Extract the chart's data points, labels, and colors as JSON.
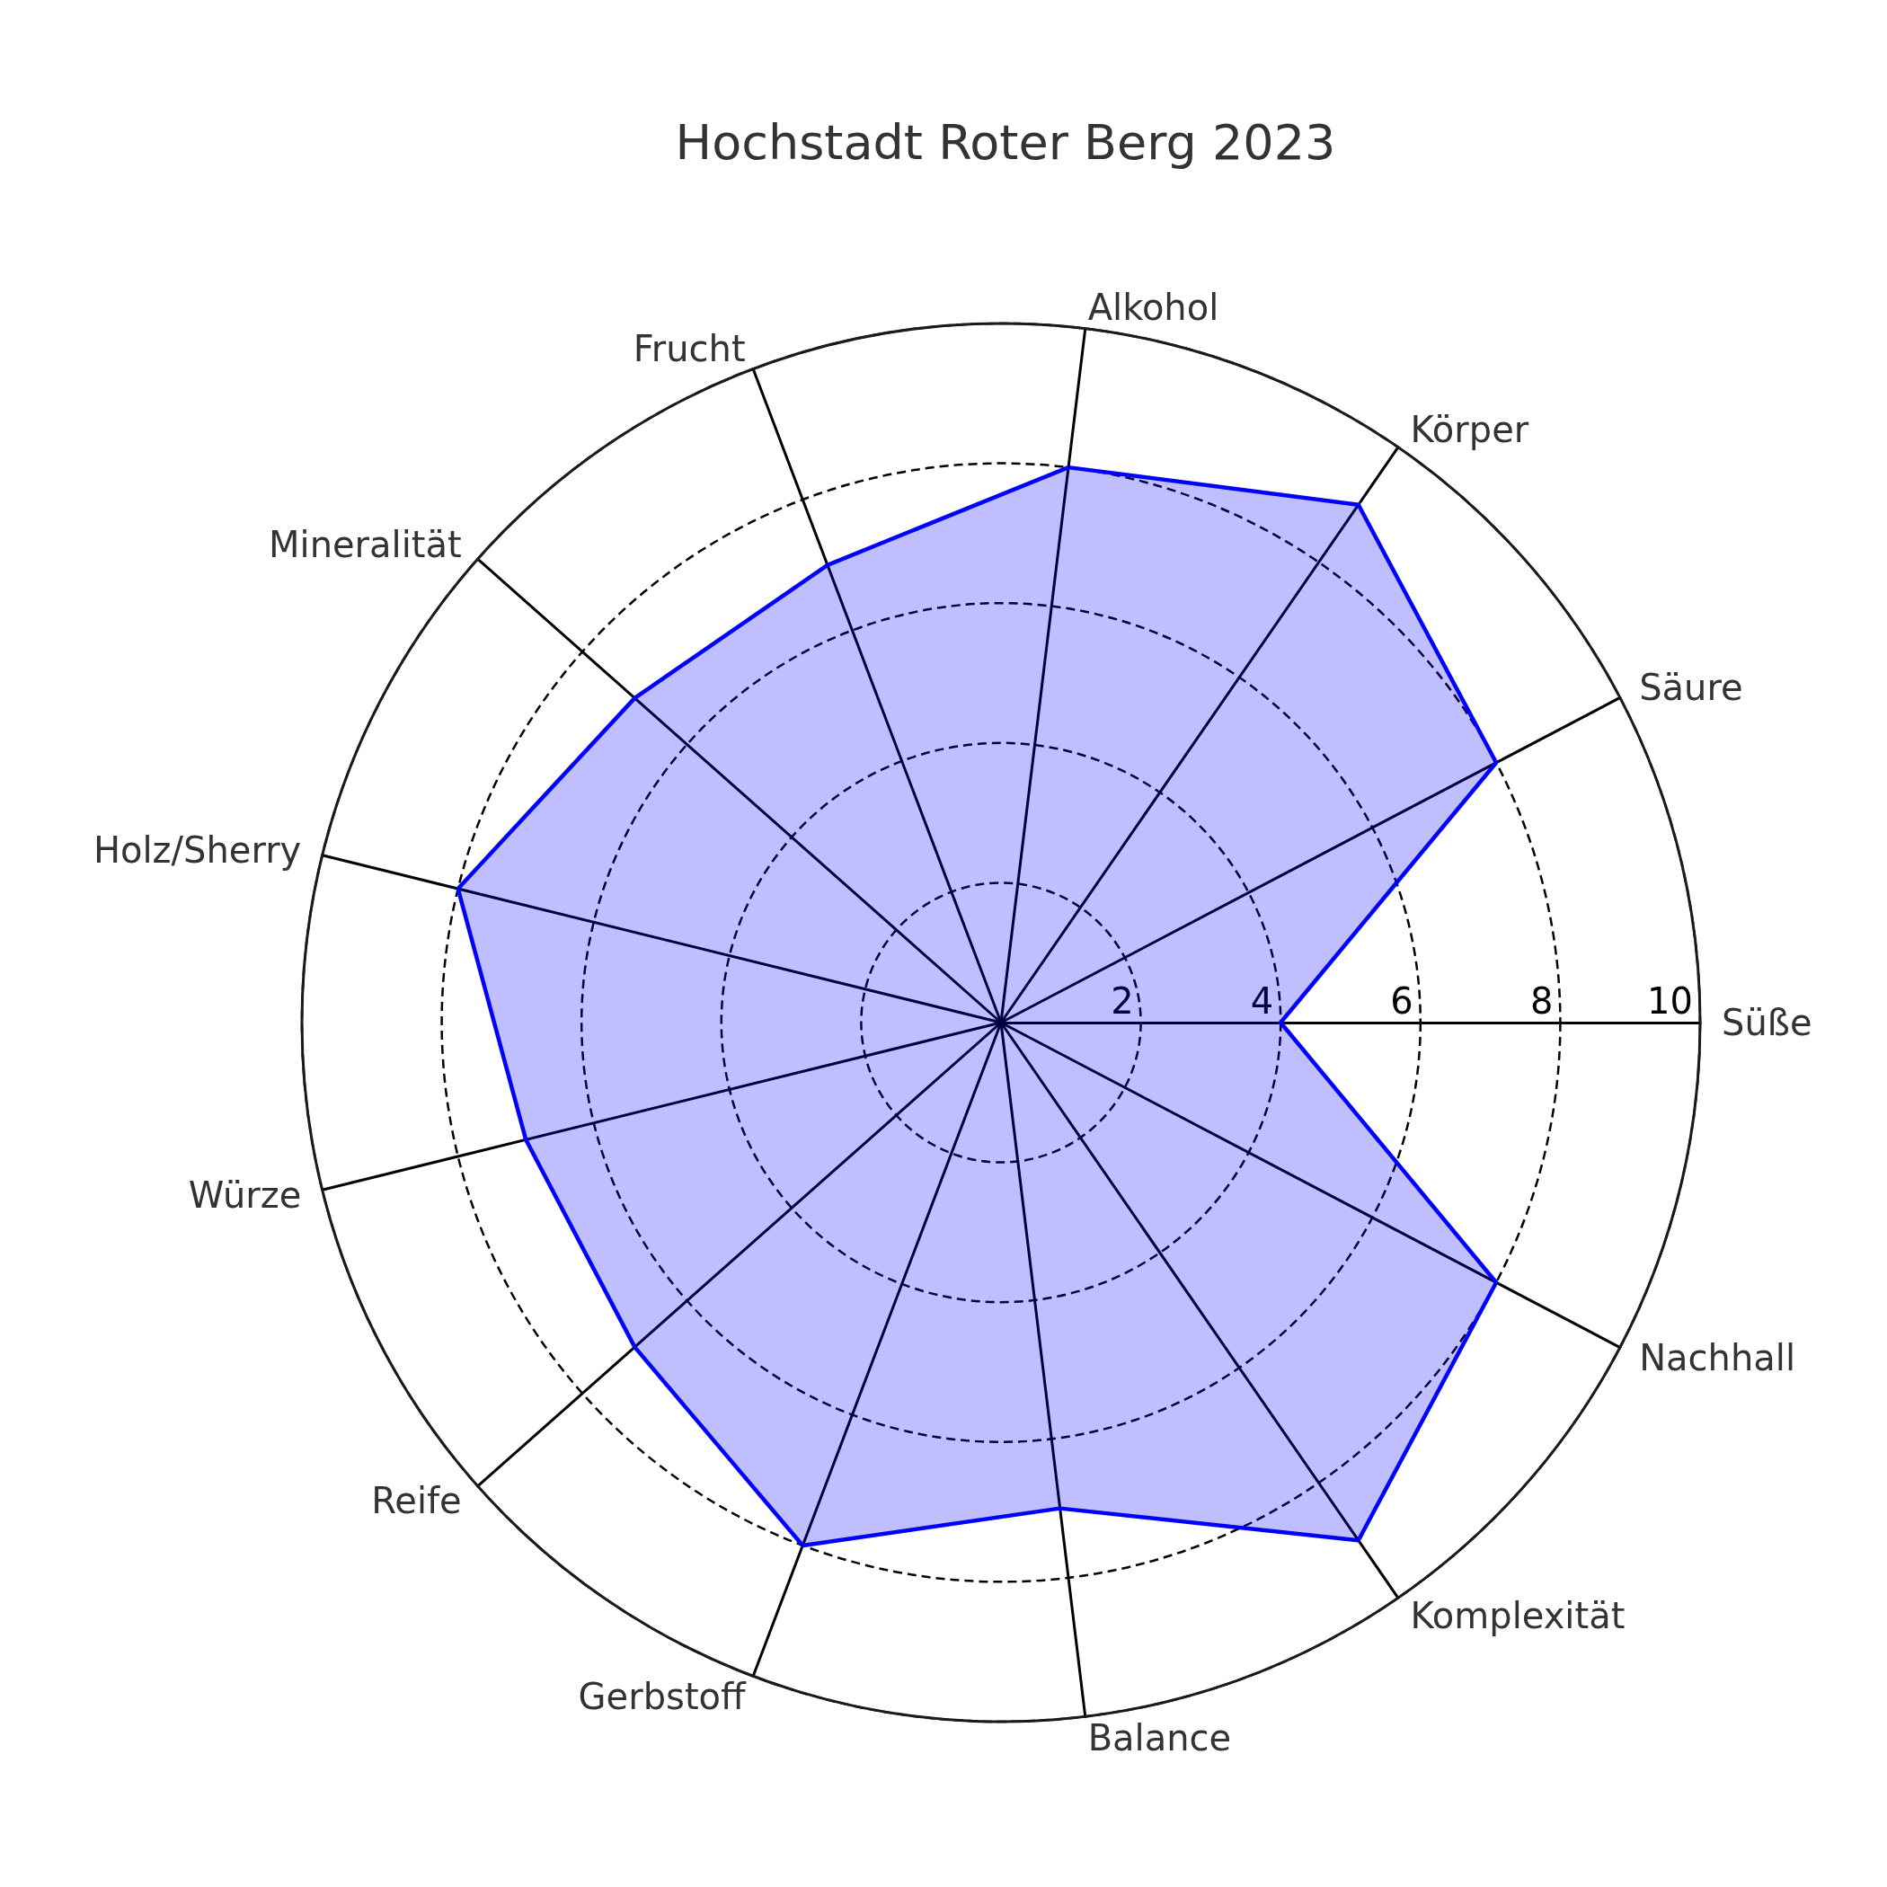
{
  "chart_data": {
    "type": "radar",
    "title": "Hochstadt Roter Berg 2023",
    "categories": [
      "Alkohol",
      "Körper",
      "Säure",
      "Süße",
      "Nachhall",
      "Komplexität",
      "Balance",
      "Gerbstoff",
      "Reife",
      "Würze",
      "Holz/Sherry",
      "Mineralität",
      "Frucht"
    ],
    "series": [
      {
        "color": "#0000ff",
        "values": [
          8,
          9,
          8,
          4,
          8,
          9,
          7,
          8,
          7,
          7,
          8,
          7,
          7
        ]
      }
    ],
    "ylim": [
      0,
      10
    ],
    "yticks": [
      2,
      4,
      6,
      8,
      10
    ],
    "grid": true
  }
}
